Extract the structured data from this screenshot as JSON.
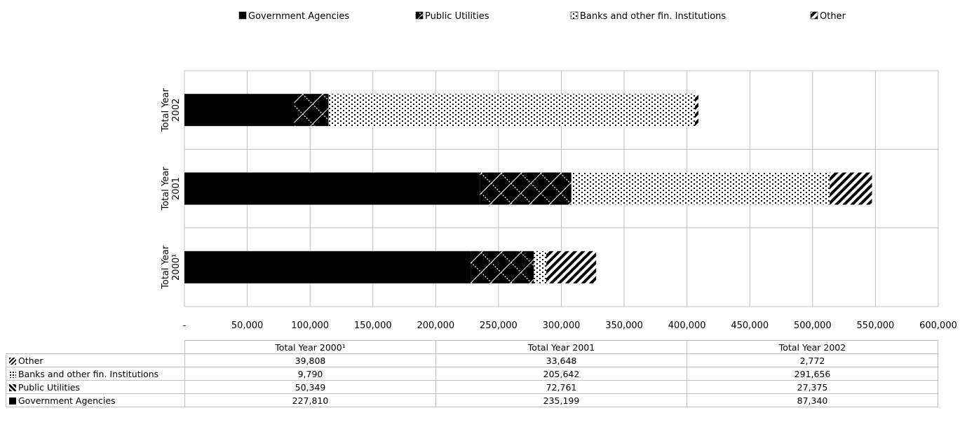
{
  "chart_data": {
    "type": "bar",
    "orientation": "horizontal",
    "stacked": true,
    "categories": [
      "Total Year 2002",
      "Total Year 2001",
      "Total Year 2000¹"
    ],
    "category_label_lines": [
      [
        "Total Year",
        "2002"
      ],
      [
        "Total Year",
        "2001"
      ],
      [
        "Total Year",
        "2000¹"
      ]
    ],
    "series": [
      {
        "name": "Government Agencies",
        "values": [
          87340,
          235199,
          227810
        ]
      },
      {
        "name": "Public Utilities",
        "values": [
          27375,
          72761,
          50349
        ]
      },
      {
        "name": "Banks and other fin. Institutions",
        "values": [
          291656,
          205642,
          9790
        ]
      },
      {
        "name": "Other",
        "values": [
          2772,
          33648,
          39808
        ]
      }
    ],
    "xlim": [
      0,
      600000
    ],
    "x_ticks": [
      0,
      50000,
      100000,
      150000,
      200000,
      250000,
      300000,
      350000,
      400000,
      450000,
      500000,
      550000,
      600000
    ],
    "x_tick_labels": [
      "-",
      "50,000",
      "100,000",
      "150,000",
      "200,000",
      "250,000",
      "300,000",
      "350,000",
      "400,000",
      "450,000",
      "500,000",
      "550,000",
      "600,000"
    ],
    "legend_position": "top",
    "grid": true,
    "colors": {
      "bar": "#000000",
      "grid": "#bfbfbf"
    }
  },
  "table": {
    "columns": [
      "Total Year 2000¹",
      "Total Year 2001",
      "Total Year 2002"
    ],
    "rows": [
      {
        "label": "Other",
        "values": [
          "39,808",
          "33,648",
          "2,772"
        ]
      },
      {
        "label": "Banks and other fin. Institutions",
        "values": [
          "9,790",
          "205,642",
          "291,656"
        ]
      },
      {
        "label": "Public Utilities",
        "values": [
          "50,349",
          "72,761",
          "27,375"
        ]
      },
      {
        "label": "Government Agencies",
        "values": [
          "227,810",
          "235,199",
          "87,340"
        ]
      }
    ]
  }
}
